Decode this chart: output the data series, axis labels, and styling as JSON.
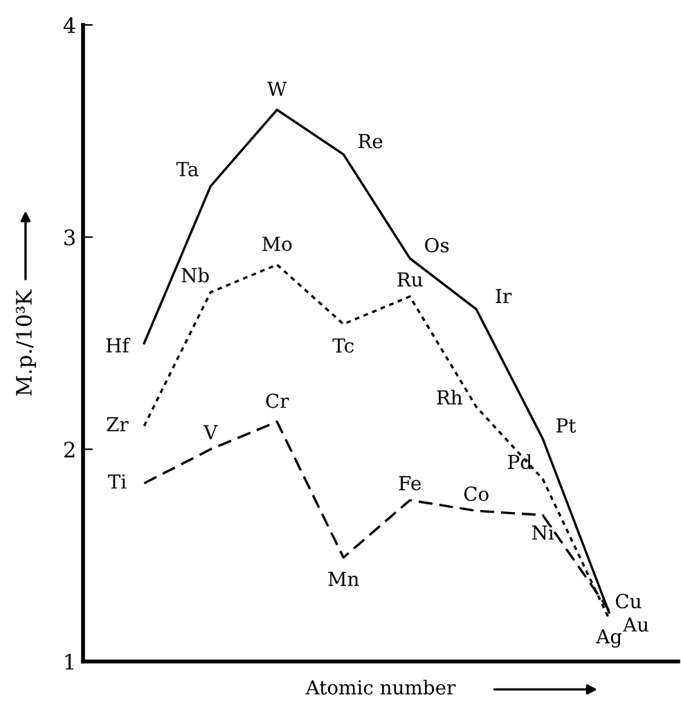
{
  "chart_data": {
    "type": "line",
    "xlabel": "Atomic number",
    "ylabel": "M.p./10³K",
    "categories": [
      null,
      null,
      null,
      null,
      null,
      null,
      null,
      null
    ],
    "ylim": [
      1,
      4
    ],
    "yticks": [
      1,
      2,
      3,
      4
    ],
    "grid": false,
    "legend": false,
    "marker": "none",
    "series": [
      {
        "color": "#000000",
        "line_style": "dashed",
        "values": [
          1.84,
          2.0,
          2.13,
          1.49,
          1.76,
          1.71,
          1.69,
          1.24
        ],
        "value_labels": [
          "Ti",
          "V",
          "Cr",
          "Mn",
          "Fe",
          "Co",
          "Ni",
          "Cu"
        ]
      },
      {
        "color": "#000000",
        "line_style": "dotted",
        "values": [
          2.11,
          2.74,
          2.87,
          2.59,
          2.72,
          2.2,
          1.86,
          1.2
        ],
        "value_labels": [
          "Zr",
          "Nb",
          "Mo",
          "Tc",
          "Ru",
          "Rh",
          "Pd",
          "Ag"
        ]
      },
      {
        "color": "#000000",
        "line_style": "solid",
        "values": [
          2.5,
          3.24,
          3.6,
          3.39,
          2.9,
          2.66,
          2.05,
          1.23
        ],
        "value_labels": [
          "Hf",
          "Ta",
          "W",
          "Re",
          "Os",
          "Ir",
          "Pt",
          "Au"
        ]
      }
    ]
  }
}
